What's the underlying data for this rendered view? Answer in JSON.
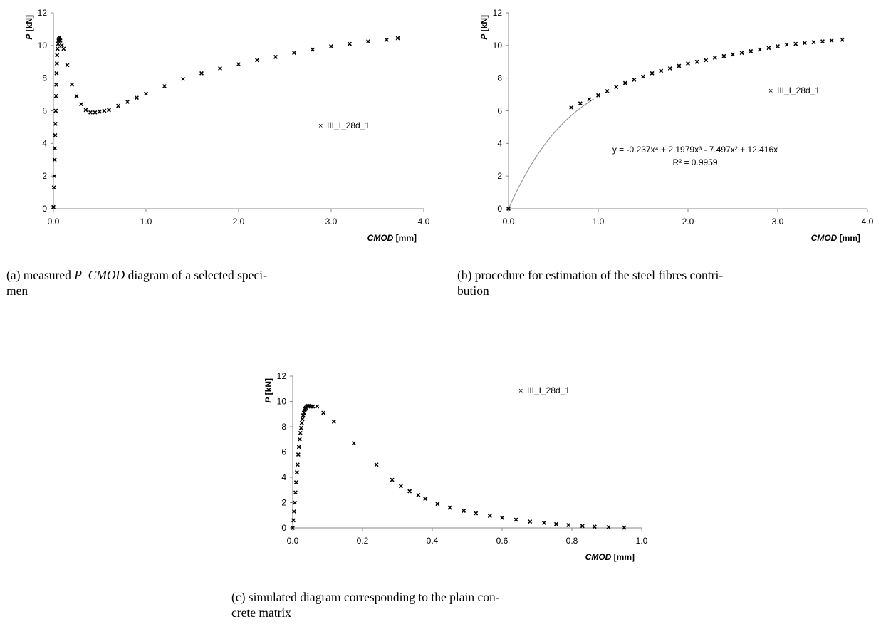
{
  "chart_data": [
    {
      "id": "a",
      "type": "scatter",
      "xlabel": {
        "italic": "CMOD",
        "rest": " [mm]"
      },
      "ylabel": {
        "italic": "P",
        "rest": " [kN]"
      },
      "xlim": [
        0,
        4
      ],
      "ylim": [
        0,
        12
      ],
      "xticks": [
        "0.0",
        "1.0",
        "2.0",
        "3.0",
        "4.0"
      ],
      "yticks": [
        "0",
        "2",
        "4",
        "6",
        "8",
        "10",
        "12"
      ],
      "legend": {
        "marker": "×",
        "label": "III_I_28d_1",
        "placement": "right-middle"
      },
      "grid": false,
      "series": [
        {
          "name": "III_I_28d_1",
          "marker": "x",
          "x": [
            0,
            0.005,
            0.01,
            0.013,
            0.016,
            0.019,
            0.022,
            0.025,
            0.028,
            0.031,
            0.034,
            0.037,
            0.04,
            0.045,
            0.05,
            0.055,
            0.06,
            0.065,
            0.075,
            0.09,
            0.11,
            0.15,
            0.2,
            0.25,
            0.3,
            0.35,
            0.4,
            0.45,
            0.5,
            0.55,
            0.6,
            0.7,
            0.8,
            0.9,
            1.0,
            1.2,
            1.4,
            1.6,
            1.8,
            2.0,
            2.2,
            2.4,
            2.6,
            2.8,
            3.0,
            3.2,
            3.4,
            3.6,
            3.72
          ],
          "y": [
            0.1,
            1.3,
            2.0,
            3.0,
            3.7,
            4.5,
            5.2,
            6.0,
            6.9,
            7.6,
            8.3,
            8.9,
            9.4,
            9.8,
            10.1,
            10.3,
            10.4,
            10.5,
            10.3,
            10.0,
            9.8,
            8.8,
            7.6,
            6.9,
            6.4,
            6.05,
            5.9,
            5.9,
            5.95,
            6.0,
            6.05,
            6.3,
            6.55,
            6.8,
            7.05,
            7.5,
            7.95,
            8.3,
            8.6,
            8.85,
            9.1,
            9.3,
            9.55,
            9.75,
            9.95,
            10.1,
            10.25,
            10.35,
            10.45
          ]
        }
      ]
    },
    {
      "id": "b",
      "type": "scatter",
      "xlabel": {
        "italic": "CMOD",
        "rest": " [mm]"
      },
      "ylabel": {
        "italic": "P",
        "rest": " [kN]"
      },
      "xlim": [
        0,
        4
      ],
      "ylim": [
        0,
        12
      ],
      "xticks": [
        "0.0",
        "1.0",
        "2.0",
        "3.0",
        "4.0"
      ],
      "yticks": [
        "0",
        "2",
        "4",
        "6",
        "8",
        "10",
        "12"
      ],
      "legend": {
        "marker": "×",
        "label": "III_I_28d_1",
        "placement": "right-upper"
      },
      "grid": false,
      "series": [
        {
          "name": "III_I_28d_1",
          "marker": "x",
          "x": [
            0,
            0.7,
            0.8,
            0.9,
            1.0,
            1.1,
            1.2,
            1.3,
            1.4,
            1.5,
            1.6,
            1.7,
            1.8,
            1.9,
            2.0,
            2.1,
            2.2,
            2.3,
            2.4,
            2.5,
            2.6,
            2.7,
            2.8,
            2.9,
            3.0,
            3.1,
            3.2,
            3.3,
            3.4,
            3.5,
            3.6,
            3.72
          ],
          "y": [
            0,
            6.2,
            6.45,
            6.7,
            6.95,
            7.2,
            7.45,
            7.7,
            7.9,
            8.1,
            8.3,
            8.45,
            8.6,
            8.75,
            8.9,
            9.0,
            9.1,
            9.25,
            9.35,
            9.45,
            9.55,
            9.65,
            9.75,
            9.85,
            9.95,
            10.05,
            10.1,
            10.15,
            10.2,
            10.25,
            10.3,
            10.35
          ]
        }
      ],
      "trendline": {
        "coefficients": {
          "x4": -0.237,
          "x3": 2.1979,
          "x2": -7.497,
          "x1": 12.416
        },
        "x_range": [
          0,
          0.95
        ]
      },
      "annotations": [
        "y = -0.237x⁴ + 2.1979x³ - 7.497x² + 12.416x",
        "R² = 0.9959"
      ]
    },
    {
      "id": "c",
      "type": "scatter",
      "xlabel": {
        "italic": "CMOD",
        "rest": " [mm]"
      },
      "ylabel": {
        "italic": "P",
        "rest": " [kN]"
      },
      "xlim": [
        0,
        1
      ],
      "ylim": [
        0,
        12
      ],
      "xticks": [
        "0.0",
        "0.2",
        "0.4",
        "0.6",
        "0.8",
        "1.0"
      ],
      "yticks": [
        "0",
        "2",
        "4",
        "6",
        "8",
        "10",
        "12"
      ],
      "legend": {
        "marker": "×",
        "label": "III_I_28d_1",
        "placement": "right-upper"
      },
      "grid": false,
      "series": [
        {
          "name": "III_I_28d_1",
          "marker": "x",
          "x": [
            0,
            0.002,
            0.004,
            0.006,
            0.008,
            0.01,
            0.012,
            0.014,
            0.016,
            0.018,
            0.02,
            0.022,
            0.024,
            0.026,
            0.028,
            0.03,
            0.032,
            0.034,
            0.036,
            0.038,
            0.04,
            0.043,
            0.047,
            0.052,
            0.058,
            0.07,
            0.088,
            0.118,
            0.175,
            0.24,
            0.285,
            0.31,
            0.335,
            0.36,
            0.38,
            0.415,
            0.45,
            0.49,
            0.525,
            0.565,
            0.6,
            0.64,
            0.68,
            0.72,
            0.755,
            0.79,
            0.83,
            0.865,
            0.905,
            0.95
          ],
          "y": [
            0,
            0.6,
            1.3,
            2.0,
            2.8,
            3.6,
            4.4,
            5.0,
            5.8,
            6.4,
            7.0,
            7.5,
            7.9,
            8.3,
            8.6,
            8.9,
            9.1,
            9.3,
            9.4,
            9.5,
            9.6,
            9.65,
            9.65,
            9.6,
            9.6,
            9.6,
            9.1,
            8.4,
            6.7,
            5.0,
            3.8,
            3.3,
            2.9,
            2.6,
            2.3,
            1.9,
            1.6,
            1.35,
            1.15,
            0.95,
            0.8,
            0.65,
            0.5,
            0.4,
            0.3,
            0.22,
            0.15,
            0.1,
            0.06,
            0.02
          ]
        }
      ]
    }
  ],
  "captions": {
    "a": {
      "prefix": "(a) measured ",
      "italic": "P–CMOD",
      "line1_rest": " diagram of a selected speci-",
      "line2": "men"
    },
    "b": {
      "line1": "(b) procedure for estimation of the steel fibres contri-",
      "line2": "bution"
    },
    "c": {
      "line1": "(c) simulated diagram corresponding to the plain con-",
      "line2": "crete matrix"
    }
  }
}
